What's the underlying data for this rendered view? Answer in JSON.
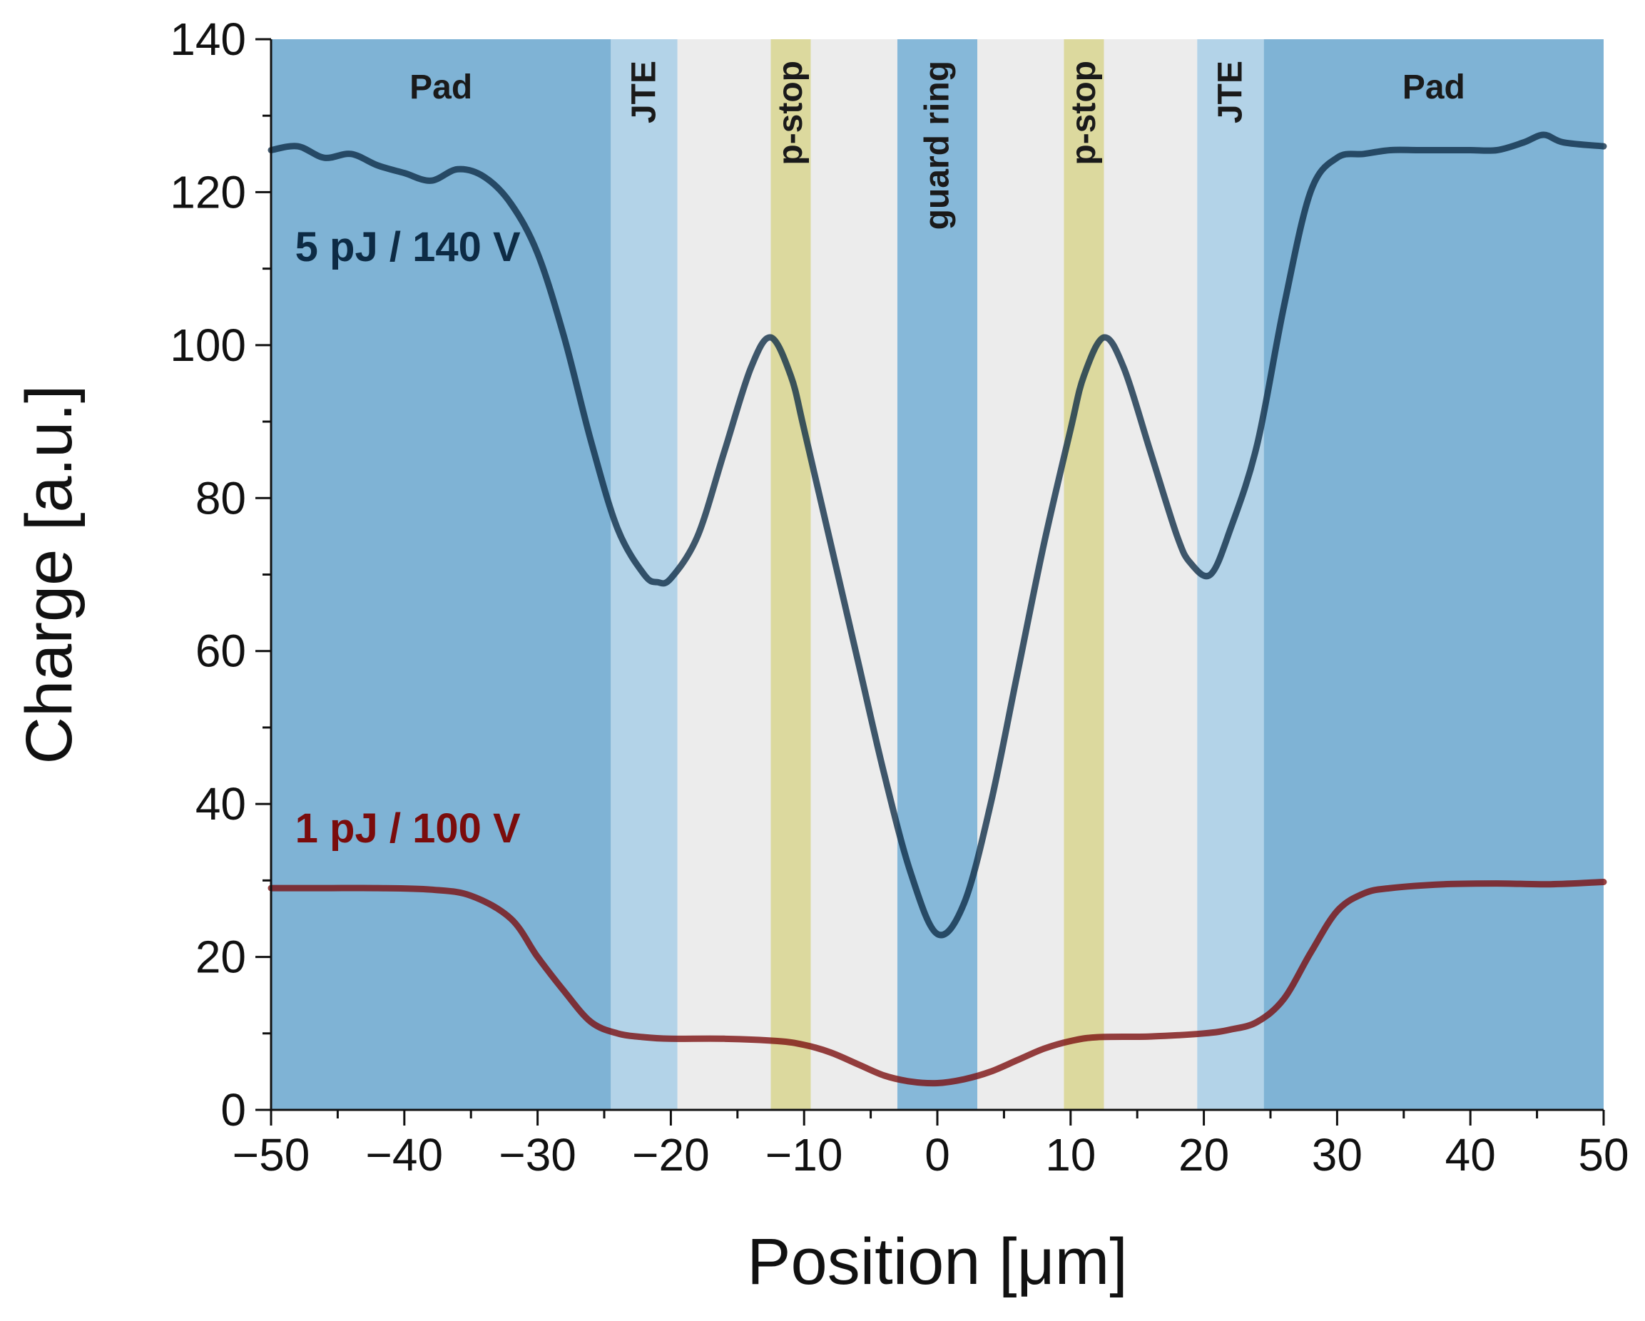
{
  "chart_data": {
    "type": "line",
    "title": "",
    "xlabel": "Position [μm]",
    "ylabel": "Charge [a.u.]",
    "xlim": [
      -50,
      50
    ],
    "ylim": [
      0,
      140
    ],
    "x_ticks": [
      -50,
      -40,
      -30,
      -20,
      -10,
      0,
      10,
      20,
      30,
      40,
      50
    ],
    "x_tick_labels": [
      "−50",
      "−40",
      "−30",
      "−20",
      "−10",
      "0",
      "10",
      "20",
      "30",
      "40",
      "50"
    ],
    "y_ticks": [
      0,
      20,
      40,
      60,
      80,
      100,
      120,
      140
    ],
    "y_tick_labels": [
      "0",
      "20",
      "40",
      "60",
      "80",
      "100",
      "120",
      "140"
    ],
    "regions": [
      {
        "label": "Pad",
        "x0": -50,
        "x1": -24.5,
        "color": "#7fb3d5",
        "orientation": "horizontal"
      },
      {
        "label": "JTE",
        "x0": -24.5,
        "x1": -19.5,
        "color": "#b3d3e8",
        "orientation": "vertical"
      },
      {
        "label": "",
        "x0": -19.5,
        "x1": -12.5,
        "color": "#ececec",
        "orientation": "none"
      },
      {
        "label": "p-stop",
        "x0": -12.5,
        "x1": -9.5,
        "color": "#dcd99e",
        "orientation": "vertical"
      },
      {
        "label": "",
        "x0": -9.5,
        "x1": -3,
        "color": "#ececec",
        "orientation": "none"
      },
      {
        "label": "guard ring",
        "x0": -3,
        "x1": 3,
        "color": "#86b8d9",
        "orientation": "vertical"
      },
      {
        "label": "",
        "x0": 3,
        "x1": 9.5,
        "color": "#ececec",
        "orientation": "none"
      },
      {
        "label": "p-stop",
        "x0": 9.5,
        "x1": 12.5,
        "color": "#dcd99e",
        "orientation": "vertical"
      },
      {
        "label": "",
        "x0": 12.5,
        "x1": 19.5,
        "color": "#ececec",
        "orientation": "none"
      },
      {
        "label": "JTE",
        "x0": 19.5,
        "x1": 24.5,
        "color": "#b3d3e8",
        "orientation": "vertical"
      },
      {
        "label": "Pad",
        "x0": 24.5,
        "x1": 50,
        "color": "#7fb3d5",
        "orientation": "horizontal"
      }
    ],
    "series": [
      {
        "name": "5 pJ / 140 V",
        "color": "#0d2b45",
        "label_anchor": {
          "x": -49,
          "y": 111
        },
        "x": [
          -50,
          -48,
          -46,
          -44,
          -42,
          -40,
          -38,
          -36,
          -34,
          -32,
          -30,
          -28,
          -26,
          -24,
          -22,
          -21,
          -20,
          -18,
          -16,
          -14,
          -12.5,
          -11,
          -10,
          -8,
          -6,
          -4,
          -2,
          0,
          2,
          4,
          6,
          8,
          10,
          11,
          12.5,
          14,
          16,
          18,
          19,
          20.5,
          22,
          24,
          26,
          28,
          30,
          32,
          34,
          36,
          38,
          40,
          42,
          44,
          45.5,
          47,
          50
        ],
        "y": [
          125.5,
          126,
          124.5,
          125,
          123.5,
          122.5,
          121.5,
          123,
          122,
          118.5,
          112,
          101,
          87.5,
          76,
          70,
          69,
          69.5,
          75,
          86,
          97,
          101,
          96,
          89,
          74,
          59,
          44,
          31,
          23,
          27,
          40,
          57,
          74,
          89,
          96,
          101,
          97,
          86,
          75,
          71.5,
          70,
          76,
          87,
          105,
          120,
          124.5,
          125,
          125.5,
          125.5,
          125.5,
          125.5,
          125.5,
          126.5,
          127.5,
          126.5,
          126
        ]
      },
      {
        "name": "1 pJ / 100 V",
        "color": "#7a0c0c",
        "label_anchor": {
          "x": -49,
          "y": 35
        },
        "x": [
          -50,
          -46,
          -42,
          -38,
          -35,
          -32,
          -30,
          -28,
          -26,
          -24,
          -22,
          -20,
          -16,
          -12,
          -10,
          -8,
          -6,
          -4,
          -2,
          0,
          2,
          4,
          6,
          8,
          10,
          12,
          16,
          20,
          22,
          24,
          26,
          28,
          30,
          32,
          34,
          38,
          42,
          46,
          50
        ],
        "y": [
          29,
          29,
          29,
          28.8,
          28,
          25,
          20,
          15.5,
          11.5,
          10,
          9.5,
          9.3,
          9.3,
          9,
          8.5,
          7.5,
          6,
          4.5,
          3.7,
          3.5,
          4,
          5,
          6.5,
          8,
          9,
          9.5,
          9.6,
          10,
          10.5,
          11.5,
          14.5,
          20.5,
          26,
          28.3,
          29,
          29.5,
          29.6,
          29.5,
          29.8
        ]
      }
    ]
  }
}
